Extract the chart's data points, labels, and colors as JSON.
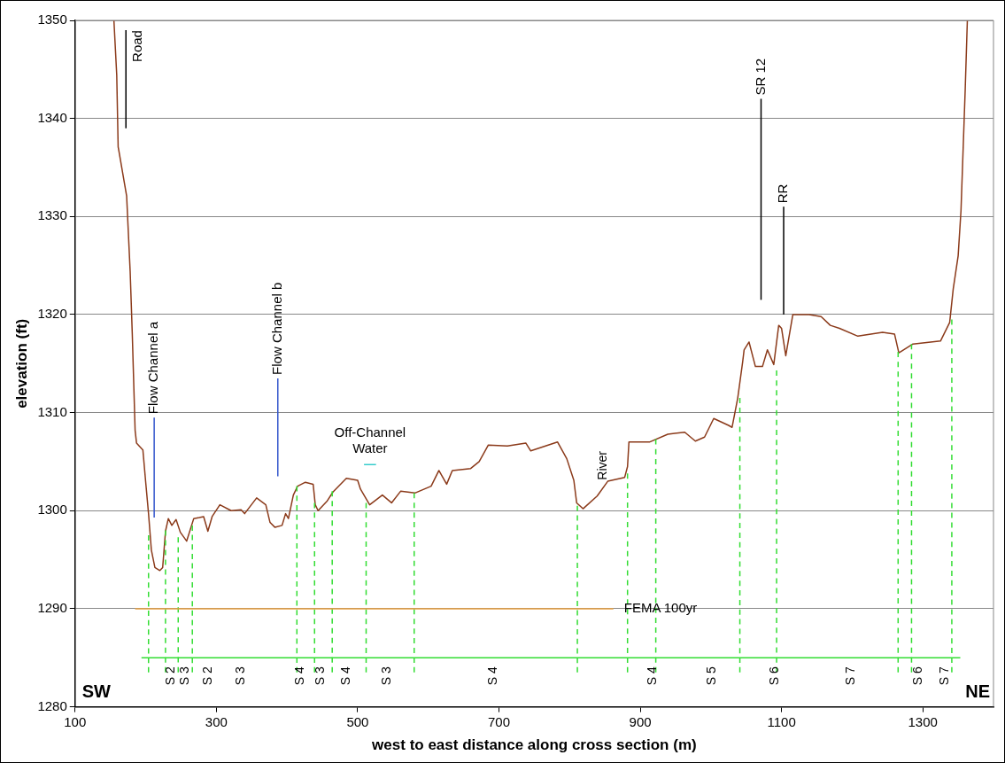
{
  "chart_data": {
    "type": "line",
    "xlabel": "west to east distance along cross section (m)",
    "ylabel": "elevation (ft)",
    "xlim": [
      100,
      1400
    ],
    "xticks": [
      100,
      300,
      500,
      700,
      900,
      1100,
      1300
    ],
    "ylim": [
      1280,
      1350
    ],
    "yticks": [
      1280,
      1290,
      1300,
      1310,
      1320,
      1330,
      1340,
      1350
    ],
    "grid": "y",
    "legend": false,
    "marker": "none",
    "line_style": "solid",
    "series": [
      {
        "color": "#8b3a1a",
        "x": [
          155,
          159,
          161,
          162,
          173,
          178,
          181,
          185,
          187,
          196,
          200,
          204,
          208,
          213,
          220,
          224,
          228,
          232,
          237,
          243,
          249,
          258,
          268,
          276,
          282,
          288,
          294,
          305,
          321,
          335,
          340,
          357,
          370,
          376,
          383,
          393,
          398,
          402,
          409,
          415,
          426,
          437,
          440,
          444,
          457,
          465,
          484,
          500,
          504,
          517,
          535,
          548,
          561,
          581,
          604,
          615,
          626,
          634,
          660,
          672,
          685,
          712,
          738,
          745,
          783,
          796,
          806,
          810,
          819,
          839,
          854,
          878,
          882,
          884,
          913,
          939,
          963,
          978,
          991,
          1004,
          1025,
          1030,
          1038,
          1045,
          1047,
          1054,
          1063,
          1073,
          1080,
          1089,
          1096,
          1100,
          1106,
          1116,
          1139,
          1156,
          1169,
          1182,
          1208,
          1243,
          1260,
          1266,
          1286,
          1325,
          1338,
          1343,
          1350,
          1354,
          1360,
          1363
        ],
        "values": [
          1350,
          1344.4,
          1337.1,
          1336.7,
          1332.1,
          1324.4,
          1318,
          1308.2,
          1306.9,
          1306.2,
          1302.9,
          1299.7,
          1296,
          1294.2,
          1293.9,
          1294.2,
          1297.9,
          1299.2,
          1298.5,
          1299.1,
          1297.8,
          1296.9,
          1299.2,
          1299.3,
          1299.4,
          1297.9,
          1299.4,
          1300.6,
          1300,
          1300.1,
          1299.7,
          1301.3,
          1300.6,
          1298.8,
          1298.3,
          1298.5,
          1299.7,
          1299.2,
          1301.6,
          1302.5,
          1302.9,
          1302.7,
          1300.6,
          1300,
          1301,
          1301.9,
          1303.3,
          1303.1,
          1302.2,
          1300.6,
          1301.6,
          1300.8,
          1302,
          1301.8,
          1302.5,
          1304.1,
          1302.7,
          1304.1,
          1304.3,
          1305,
          1306.7,
          1306.6,
          1306.9,
          1306.1,
          1307,
          1305.3,
          1303.1,
          1300.8,
          1300.2,
          1301.5,
          1303,
          1303.4,
          1304.5,
          1307,
          1307,
          1307.8,
          1308,
          1307.1,
          1307.5,
          1309.4,
          1308.7,
          1308.5,
          1311.5,
          1315.2,
          1316.4,
          1317.2,
          1314.7,
          1314.7,
          1316.4,
          1314.9,
          1318.9,
          1318.6,
          1315.8,
          1320,
          1320,
          1319.8,
          1318.9,
          1318.6,
          1317.8,
          1318.2,
          1318,
          1316.1,
          1317,
          1317.3,
          1319.2,
          1322.6,
          1326,
          1330.6,
          1343,
          1350
        ]
      },
      {
        "color": "#33dd33",
        "line_style": "dashed",
        "x": [
          204,
          204
        ],
        "values": [
          1283.5,
          1297.5
        ]
      },
      {
        "color": "#33dd33",
        "line_style": "dashed",
        "x": [
          228,
          228
        ],
        "values": [
          1283.5,
          1298
        ]
      },
      {
        "color": "#33dd33",
        "line_style": "dashed",
        "x": [
          246,
          246
        ],
        "values": [
          1283.5,
          1297.3
        ]
      },
      {
        "color": "#33dd33",
        "line_style": "dashed",
        "x": [
          266,
          266
        ],
        "values": [
          1283.5,
          1298.5
        ]
      },
      {
        "color": "#33dd33",
        "line_style": "dashed",
        "x": [
          414,
          414
        ],
        "values": [
          1283.5,
          1302.5
        ]
      },
      {
        "color": "#33dd33",
        "line_style": "dashed",
        "x": [
          439,
          439
        ],
        "values": [
          1283.5,
          1300.8
        ]
      },
      {
        "color": "#33dd33",
        "line_style": "dashed",
        "x": [
          464,
          464
        ],
        "values": [
          1283.5,
          1302
        ]
      },
      {
        "color": "#33dd33",
        "line_style": "dashed",
        "x": [
          512,
          512
        ],
        "values": [
          1283.5,
          1300.8
        ]
      },
      {
        "color": "#33dd33",
        "line_style": "dashed",
        "x": [
          580,
          580
        ],
        "values": [
          1283.5,
          1301.8
        ]
      },
      {
        "color": "#33dd33",
        "line_style": "dashed",
        "x": [
          811,
          811
        ],
        "values": [
          1283.5,
          1300.5
        ]
      },
      {
        "color": "#33dd33",
        "line_style": "dashed",
        "x": [
          882,
          882
        ],
        "values": [
          1283.5,
          1303.8
        ]
      },
      {
        "color": "#33dd33",
        "line_style": "dashed",
        "x": [
          922,
          922
        ],
        "values": [
          1283.5,
          1307.3
        ]
      },
      {
        "color": "#33dd33",
        "line_style": "dashed",
        "x": [
          1041,
          1041
        ],
        "values": [
          1283.5,
          1311.5
        ]
      },
      {
        "color": "#33dd33",
        "line_style": "dashed",
        "x": [
          1093,
          1093
        ],
        "values": [
          1283.5,
          1314.3
        ]
      },
      {
        "color": "#33dd33",
        "line_style": "dashed",
        "x": [
          1265,
          1265
        ],
        "values": [
          1283.5,
          1316.2
        ]
      },
      {
        "color": "#33dd33",
        "line_style": "dashed",
        "x": [
          1284,
          1284
        ],
        "values": [
          1283.5,
          1317
        ]
      },
      {
        "color": "#33dd33",
        "line_style": "dashed",
        "x": [
          1341,
          1341
        ],
        "values": [
          1283.5,
          1319.5
        ]
      },
      {
        "color": "#33dd33",
        "x": [
          194,
          1353
        ],
        "values": [
          1285,
          1285
        ]
      },
      {
        "name": "FEMA 100yr",
        "color": "#e8a040",
        "x": [
          185,
          862
        ],
        "values": [
          1290,
          1290
        ]
      },
      {
        "name": "Road",
        "color": "#000000",
        "x": [
          172,
          172
        ],
        "values": [
          1339,
          1349
        ]
      },
      {
        "name": "Flow Channel a",
        "color": "#3355cc",
        "x": [
          212,
          212
        ],
        "values": [
          1299.3,
          1309.5
        ]
      },
      {
        "name": "Flow Channel b",
        "color": "#3355cc",
        "x": [
          387,
          387
        ],
        "values": [
          1303.5,
          1313.5
        ]
      },
      {
        "name": "Off-Channel Water",
        "color": "#33cccc",
        "x": [
          509,
          526
        ],
        "values": [
          1304.7,
          1304.7
        ]
      },
      {
        "name": "SR 12",
        "color": "#000000",
        "x": [
          1071,
          1071
        ],
        "values": [
          1321.5,
          1342
        ]
      },
      {
        "name": "RR",
        "color": "#000000",
        "x": [
          1103,
          1103
        ],
        "values": [
          1320,
          1331
        ]
      }
    ],
    "annotations": [
      "SW",
      "NE",
      {
        "text": "River",
        "x": 848,
        "y": 1302.4
      },
      {
        "text": "S 2",
        "x": 236,
        "y": 1285
      },
      {
        "text": "S 3",
        "x": 256,
        "y": 1285
      },
      {
        "text": "S 2",
        "x": 288,
        "y": 1285
      },
      {
        "text": "S 3",
        "x": 335,
        "y": 1285
      },
      {
        "text": "S 4",
        "x": 419,
        "y": 1285
      },
      {
        "text": "S 3",
        "x": 448,
        "y": 1285
      },
      {
        "text": "S 4",
        "x": 484,
        "y": 1285
      },
      {
        "text": "S 3",
        "x": 542,
        "y": 1285
      },
      {
        "text": "S 4",
        "x": 692,
        "y": 1285
      },
      {
        "text": "S 4",
        "x": 918,
        "y": 1285
      },
      {
        "text": "S 5",
        "x": 1001,
        "y": 1285
      },
      {
        "text": "S 6",
        "x": 1090,
        "y": 1285
      },
      {
        "text": "S 7",
        "x": 1198,
        "y": 1285
      },
      {
        "text": "S 6",
        "x": 1294,
        "y": 1285
      },
      {
        "text": "S 7",
        "x": 1331,
        "y": 1285
      }
    ]
  }
}
